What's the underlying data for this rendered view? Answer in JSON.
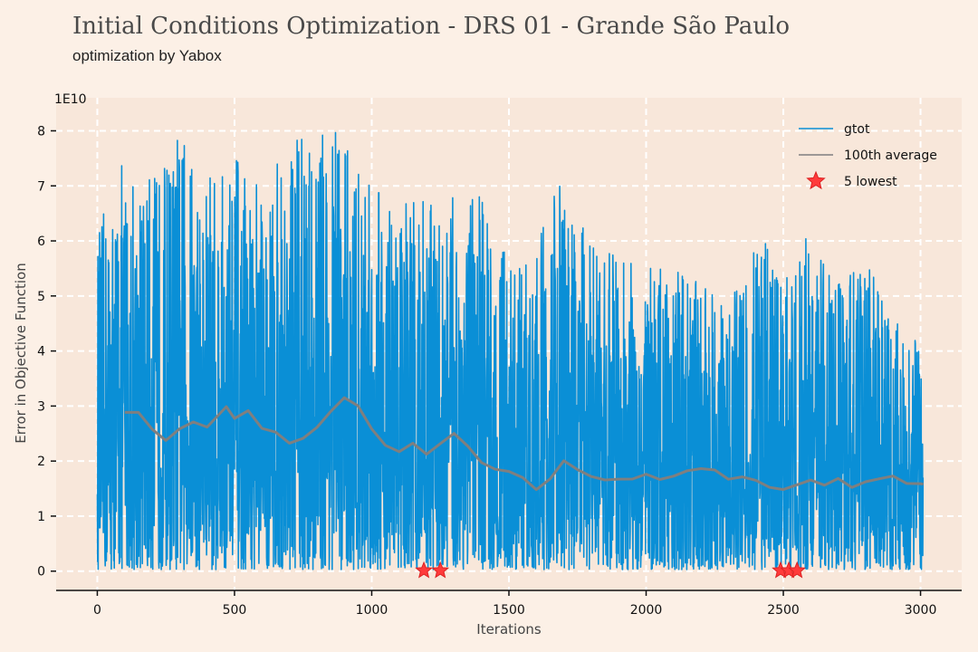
{
  "title": "Initial Conditions Optimization - DRS 01 - Grande São Paulo",
  "subtitle": "optimization by Yabox",
  "colors": {
    "background": "#fcf0e6",
    "plot_area": "#f8e7da",
    "grid": "#ffffff",
    "gtot": "#0a8fd6",
    "average": "#7f7f7f",
    "lowest": "#ff3b3b"
  },
  "chart_data": {
    "type": "line",
    "title": "Initial Conditions Optimization - DRS 01 - Grande São Paulo",
    "subtitle": "optimization by Yabox",
    "xlabel": "Iterations",
    "ylabel": "Error in Objective Function",
    "y_scale_label": "1E10",
    "xlim": [
      -150,
      3150
    ],
    "ylim": [
      -0.35,
      8.6
    ],
    "x_ticks": [
      0,
      500,
      1000,
      1500,
      2000,
      2500,
      3000
    ],
    "y_ticks": [
      0,
      1,
      2,
      3,
      4,
      5,
      6,
      7,
      8
    ],
    "grid": true,
    "legend_position": "top-right",
    "legend": [
      "gtot",
      "100th average",
      "5 lowest"
    ],
    "series": [
      {
        "name": "gtot",
        "style": "noisy line",
        "n_points": 3010,
        "envelope_x": [
          0,
          100,
          200,
          300,
          400,
          500,
          600,
          700,
          800,
          900,
          1000,
          1100,
          1200,
          1300,
          1400,
          1500,
          1600,
          1700,
          1800,
          1900,
          2000,
          2100,
          2200,
          2300,
          2400,
          2500,
          2600,
          2700,
          2800,
          2900,
          3010
        ],
        "envelope_max": [
          6.2,
          7.6,
          7.2,
          8.1,
          7.1,
          7.5,
          6.9,
          7.8,
          7.9,
          8.0,
          6.9,
          6.8,
          6.7,
          6.8,
          6.8,
          5.6,
          5.9,
          7.3,
          5.9,
          5.7,
          5.5,
          5.5,
          5.6,
          4.7,
          6.3,
          5.3,
          6.2,
          5.2,
          5.6,
          4.7,
          4.0
        ],
        "min_value": 0.03,
        "first_value": 1.4,
        "last_value": 1.7
      },
      {
        "name": "100th average",
        "x": [
          100,
          150,
          200,
          250,
          300,
          350,
          400,
          450,
          470,
          500,
          550,
          600,
          650,
          700,
          750,
          800,
          850,
          900,
          950,
          1000,
          1050,
          1100,
          1150,
          1200,
          1250,
          1300,
          1350,
          1400,
          1450,
          1500,
          1550,
          1600,
          1650,
          1700,
          1750,
          1800,
          1850,
          1900,
          1950,
          2000,
          2050,
          2100,
          2150,
          2200,
          2250,
          2300,
          2350,
          2400,
          2450,
          2500,
          2550,
          2600,
          2650,
          2700,
          2750,
          2800,
          2850,
          2900,
          2950,
          3000,
          3010
        ],
        "values": [
          2.9,
          2.9,
          2.6,
          2.4,
          2.6,
          2.7,
          2.6,
          2.9,
          3.0,
          2.8,
          2.9,
          2.6,
          2.5,
          2.3,
          2.4,
          2.6,
          2.9,
          3.15,
          3.0,
          2.6,
          2.3,
          2.2,
          2.3,
          2.1,
          2.3,
          2.5,
          2.3,
          2.0,
          1.85,
          1.8,
          1.7,
          1.5,
          1.7,
          2.0,
          1.85,
          1.7,
          1.65,
          1.7,
          1.65,
          1.75,
          1.65,
          1.7,
          1.8,
          1.85,
          1.85,
          1.7,
          1.7,
          1.65,
          1.55,
          1.5,
          1.6,
          1.65,
          1.55,
          1.7,
          1.55,
          1.65,
          1.7,
          1.7,
          1.6,
          1.6,
          1.55
        ]
      },
      {
        "name": "5 lowest",
        "x": [
          1190,
          1250,
          2490,
          2520,
          2550
        ],
        "values": [
          0.01,
          0.01,
          0.01,
          0.01,
          0.01
        ]
      }
    ]
  }
}
